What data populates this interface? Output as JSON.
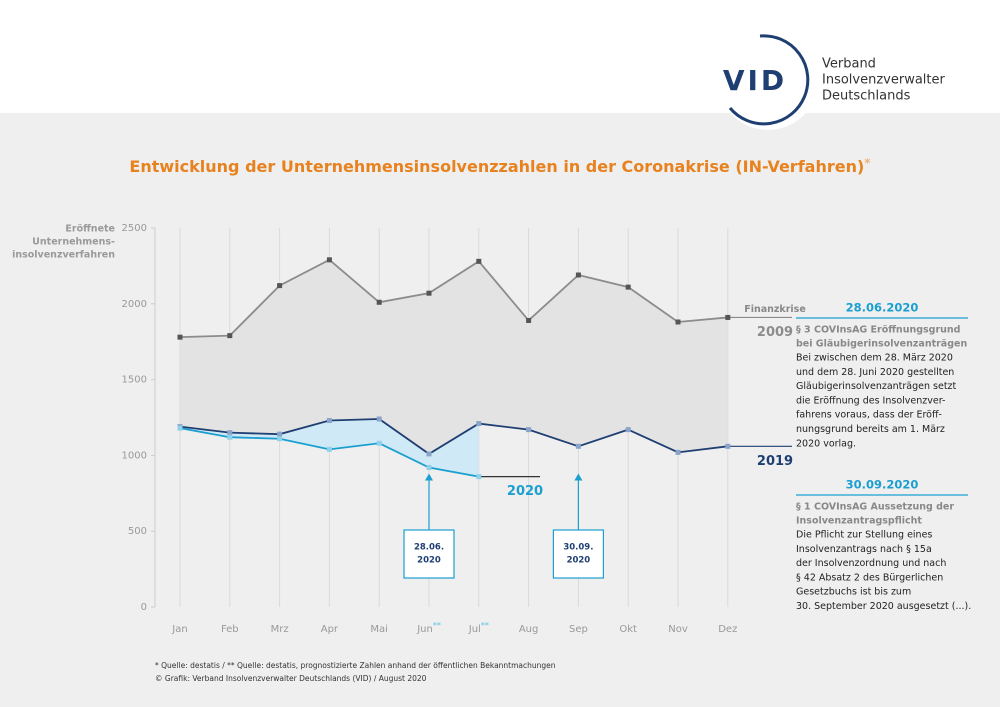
{
  "header": {
    "logo": "VID",
    "org_lines": [
      "Verband",
      "Insolvenzverwalter",
      "Deutschlands"
    ]
  },
  "chart_data": {
    "type": "line",
    "title": "Entwicklung der Unternehmensinsolvenzzahlen in der Coronakrise (IN-Verfahren)",
    "title_mark": "*",
    "y_label_lines": [
      "Eröffnete",
      "Unternehmens-",
      "insolvenzverfahren"
    ],
    "categories": [
      "Jan",
      "Feb",
      "Mrz",
      "Apr",
      "Mai",
      "Jun",
      "Jul",
      "Aug",
      "Sep",
      "Okt",
      "Nov",
      "Dez"
    ],
    "category_marks": [
      null,
      null,
      null,
      null,
      null,
      "**",
      "**",
      null,
      null,
      null,
      null,
      null
    ],
    "ylim": [
      0,
      2500
    ],
    "yticks": [
      0,
      500,
      1000,
      1500,
      2000,
      2500
    ],
    "series": [
      {
        "name": "2009",
        "tag": "Finanzkrise",
        "color": "#8c8c8c",
        "values": [
          1780,
          1790,
          2120,
          2290,
          2010,
          2070,
          2280,
          1890,
          2190,
          2110,
          1880,
          1910
        ]
      },
      {
        "name": "2019",
        "color": "#1f3f73",
        "values": [
          1190,
          1150,
          1140,
          1230,
          1240,
          1010,
          1210,
          1170,
          1060,
          1170,
          1020,
          1060
        ]
      },
      {
        "name": "2020",
        "color": "#1a9fd0",
        "values": [
          1180,
          1120,
          1110,
          1040,
          1080,
          920,
          860,
          null,
          null,
          null,
          null,
          null
        ]
      }
    ],
    "callouts": [
      {
        "category": "Jun",
        "lines": [
          "28.06.",
          "2020"
        ]
      },
      {
        "category": "Sep",
        "lines": [
          "30.09.",
          "2020"
        ]
      }
    ],
    "notes": [
      {
        "date": "28.06.2020",
        "heading": [
          "§ 3 COVInsAG Eröffnungsgrund",
          "bei Gläubigerinsolvenzanträgen"
        ],
        "body": [
          "Bei zwischen dem 28. März 2020",
          "und dem 28. Juni 2020 gestellten",
          "Gläubigerinsolvenzanträgen setzt",
          "die Eröffnung des Insolvenzver-",
          "fahrens voraus, dass der Eröff-",
          "nungsgrund bereits am 1. März",
          "2020 vorlag."
        ]
      },
      {
        "date": "30.09.2020",
        "heading": [
          "§ 1 COVInsAG Aussetzung der",
          "Insolvenzantragspflicht"
        ],
        "body": [
          "Die Pflicht zur Stellung eines",
          "Insolvenzantrags nach § 15a",
          "der Insolvenzordnung und nach",
          "§ 42 Absatz 2 des Bürgerlichen",
          "Gesetzbuchs ist bis zum",
          "30. September 2020 ausgesetzt (...)."
        ]
      }
    ],
    "footnotes": [
      "* Quelle: destatis / ** Quelle: destatis, prognostizierte Zahlen anhand der öffentlichen Bekanntmachungen",
      "© Grafik: Verband Insolvenzverwalter Deutschlands (VID) / August 2020"
    ]
  }
}
